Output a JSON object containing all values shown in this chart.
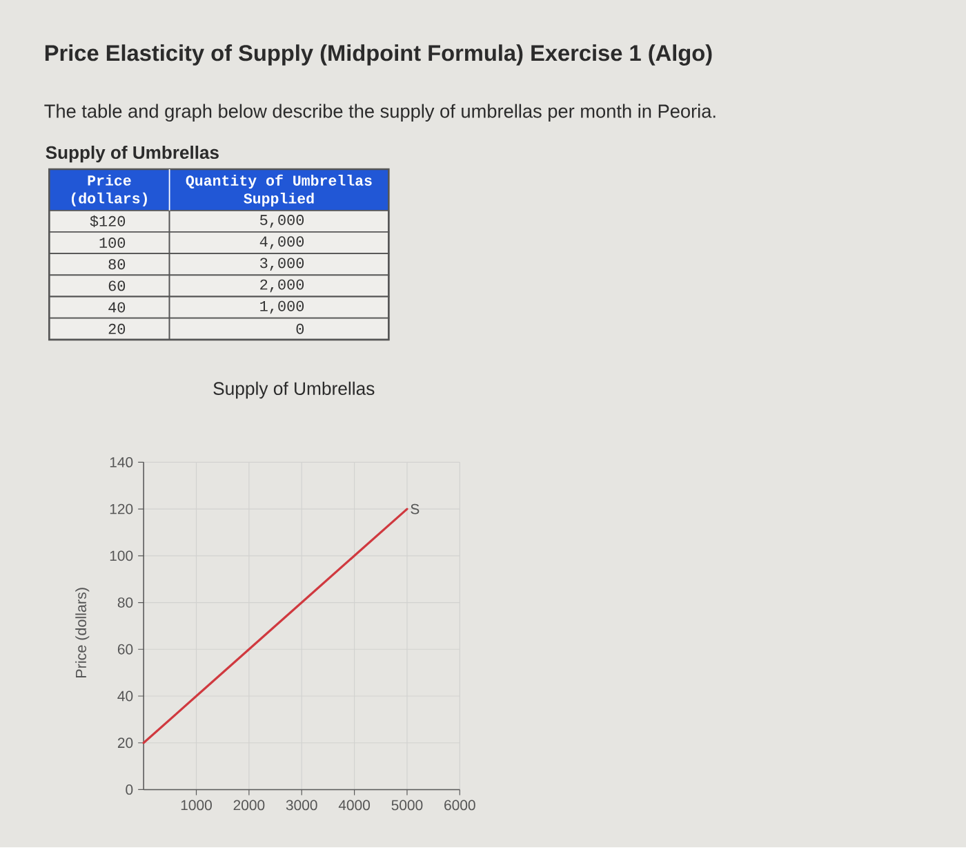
{
  "chart_data": {
    "type": "line",
    "title": "Supply of Umbrellas",
    "ylabel": "Price (dollars)",
    "annotations": [
      "Price Elasticity of Supply (Midpoint Formula) Exercise 1 (Algo)",
      "The table and graph below describe the supply of umbrellas per month in Peoria.",
      "Supply of Umbrellas",
      "Price (dollars)",
      "Quantity of Umbrellas Supplied",
      "$120",
      "5,000",
      "100",
      "4,000",
      "80",
      "3,000",
      "60",
      "2,000",
      "40",
      "1,000",
      "20",
      "0"
    ],
    "x": [
      0,
      1000,
      2000,
      3000,
      4000,
      5000
    ],
    "series": [
      {
        "name": "S",
        "color": "#d0393f",
        "values": [
          20,
          40,
          60,
          80,
          100,
          120
        ]
      }
    ],
    "xlim": [
      0,
      6000
    ],
    "ylim": [
      0,
      140
    ],
    "xticks": [
      1000,
      2000,
      3000,
      4000,
      5000,
      6000
    ],
    "yticks": [
      0,
      20,
      40,
      60,
      80,
      100,
      120,
      140
    ],
    "grid": true
  }
}
